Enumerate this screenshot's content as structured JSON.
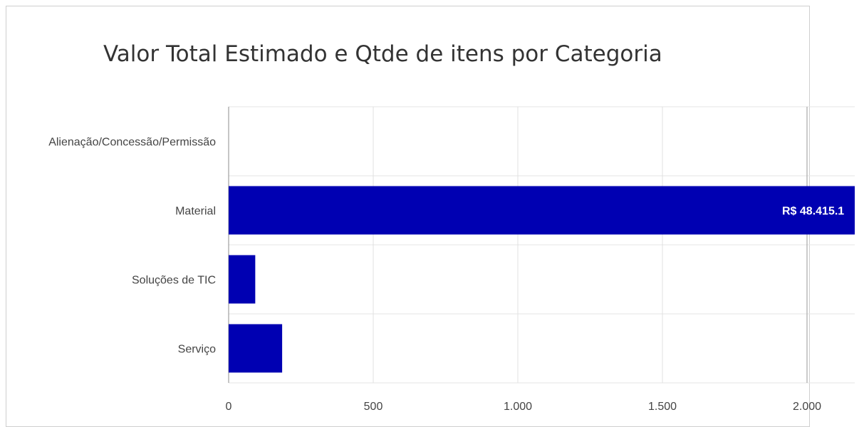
{
  "chart_data": {
    "type": "bar",
    "orientation": "horizontal",
    "title": "Valor Total Estimado e Qtde de itens por Categoria",
    "categories": [
      "Alienação/Concessão/Permissão",
      "Material",
      "Soluções de TIC",
      "Serviço"
    ],
    "values": [
      0,
      2200,
      92,
      185
    ],
    "data_labels": [
      "",
      "R$ 48.415.1",
      "",
      ""
    ],
    "x_ticks": [
      0,
      500,
      1000,
      1500,
      2000
    ],
    "x_tick_labels": [
      "0",
      "500",
      "1.000",
      "1.500",
      "2.000"
    ],
    "xlim": [
      0,
      2165
    ],
    "grid": true,
    "bar_color": "#0000b2"
  }
}
